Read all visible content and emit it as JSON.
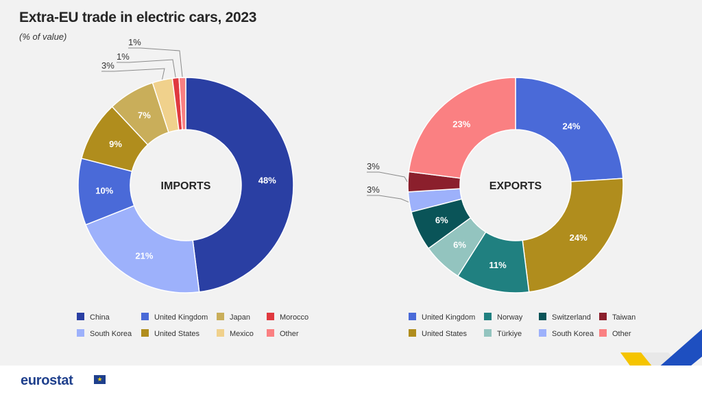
{
  "title": "Extra-EU trade in electric cars, 2023",
  "subtitle": "(% of value)",
  "logo": "eurostat",
  "chart_data": [
    {
      "type": "pie",
      "variant": "donut",
      "center_label": "IMPORTS",
      "slices": [
        {
          "name": "China",
          "value": 48,
          "label": "48%",
          "color": "#2a3fa3"
        },
        {
          "name": "South Korea",
          "value": 21,
          "label": "21%",
          "color": "#9db1fb"
        },
        {
          "name": "United Kingdom",
          "value": 10,
          "label": "10%",
          "color": "#4a6ad8"
        },
        {
          "name": "United States",
          "value": 9,
          "label": "9%",
          "color": "#b08d1d"
        },
        {
          "name": "Japan",
          "value": 7,
          "label": "7%",
          "color": "#c9ae5a"
        },
        {
          "name": "Mexico",
          "value": 3,
          "label": "3%",
          "color": "#f0d18c"
        },
        {
          "name": "Morocco",
          "value": 1,
          "label": "1%",
          "color": "#e0393f"
        },
        {
          "name": "Other",
          "value": 1,
          "label": "1%",
          "color": "#fa8082"
        }
      ],
      "legend": [
        {
          "name": "China",
          "color": "#2a3fa3"
        },
        {
          "name": "United Kingdom",
          "color": "#4a6ad8"
        },
        {
          "name": "Japan",
          "color": "#c9ae5a"
        },
        {
          "name": "Morocco",
          "color": "#e0393f"
        },
        {
          "name": "South Korea",
          "color": "#9db1fb"
        },
        {
          "name": "United States",
          "color": "#b08d1d"
        },
        {
          "name": "Mexico",
          "color": "#f0d18c"
        },
        {
          "name": "Other",
          "color": "#fa8082"
        }
      ]
    },
    {
      "type": "pie",
      "variant": "donut",
      "center_label": "EXPORTS",
      "slices": [
        {
          "name": "United Kingdom",
          "value": 24,
          "label": "24%",
          "color": "#4a6ad8"
        },
        {
          "name": "United States",
          "value": 24,
          "label": "24%",
          "color": "#b08d1d"
        },
        {
          "name": "Norway",
          "value": 11,
          "label": "11%",
          "color": "#208080"
        },
        {
          "name": "Türkiye",
          "value": 6,
          "label": "6%",
          "color": "#93c4bf"
        },
        {
          "name": "Switzerland",
          "value": 6,
          "label": "6%",
          "color": "#0a5458"
        },
        {
          "name": "South Korea",
          "value": 3,
          "label": "3%",
          "color": "#9db1fb"
        },
        {
          "name": "Taiwan",
          "value": 3,
          "label": "3%",
          "color": "#8b1f2c"
        },
        {
          "name": "Other",
          "value": 23,
          "label": "23%",
          "color": "#fa8082"
        }
      ],
      "legend": [
        {
          "name": "United Kingdom",
          "color": "#4a6ad8"
        },
        {
          "name": "Norway",
          "color": "#208080"
        },
        {
          "name": "Switzerland",
          "color": "#0a5458"
        },
        {
          "name": "Taiwan",
          "color": "#8b1f2c"
        },
        {
          "name": "United States",
          "color": "#b08d1d"
        },
        {
          "name": "Türkiye",
          "color": "#93c4bf"
        },
        {
          "name": "South Korea",
          "color": "#9db1fb"
        },
        {
          "name": "Other",
          "color": "#fa8082"
        }
      ]
    }
  ]
}
